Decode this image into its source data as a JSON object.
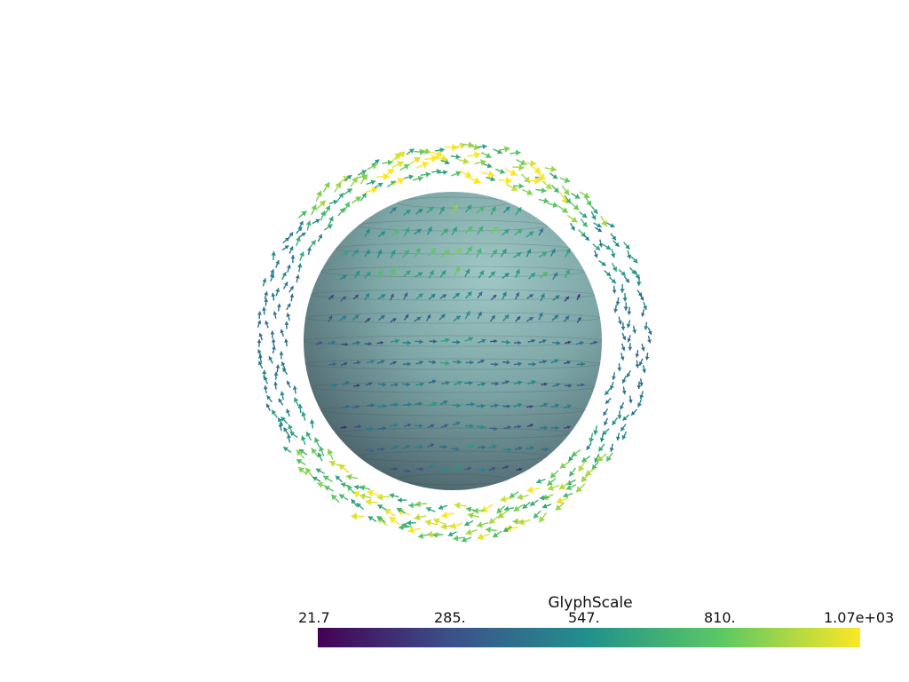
{
  "colorbar": {
    "title": "GlyphScale",
    "ticks": [
      "21.7",
      "285.",
      "547.",
      "810.",
      "1.07e+03"
    ],
    "range": [
      21.7,
      1070
    ],
    "colormap": "viridis",
    "stops": [
      "#440154",
      "#3b528b",
      "#21918c",
      "#5ec962",
      "#fde725"
    ]
  },
  "scene": {
    "object": "sphere",
    "sphere_color": "#8fb3b3",
    "glyph_type": "arrow-glyphs"
  }
}
